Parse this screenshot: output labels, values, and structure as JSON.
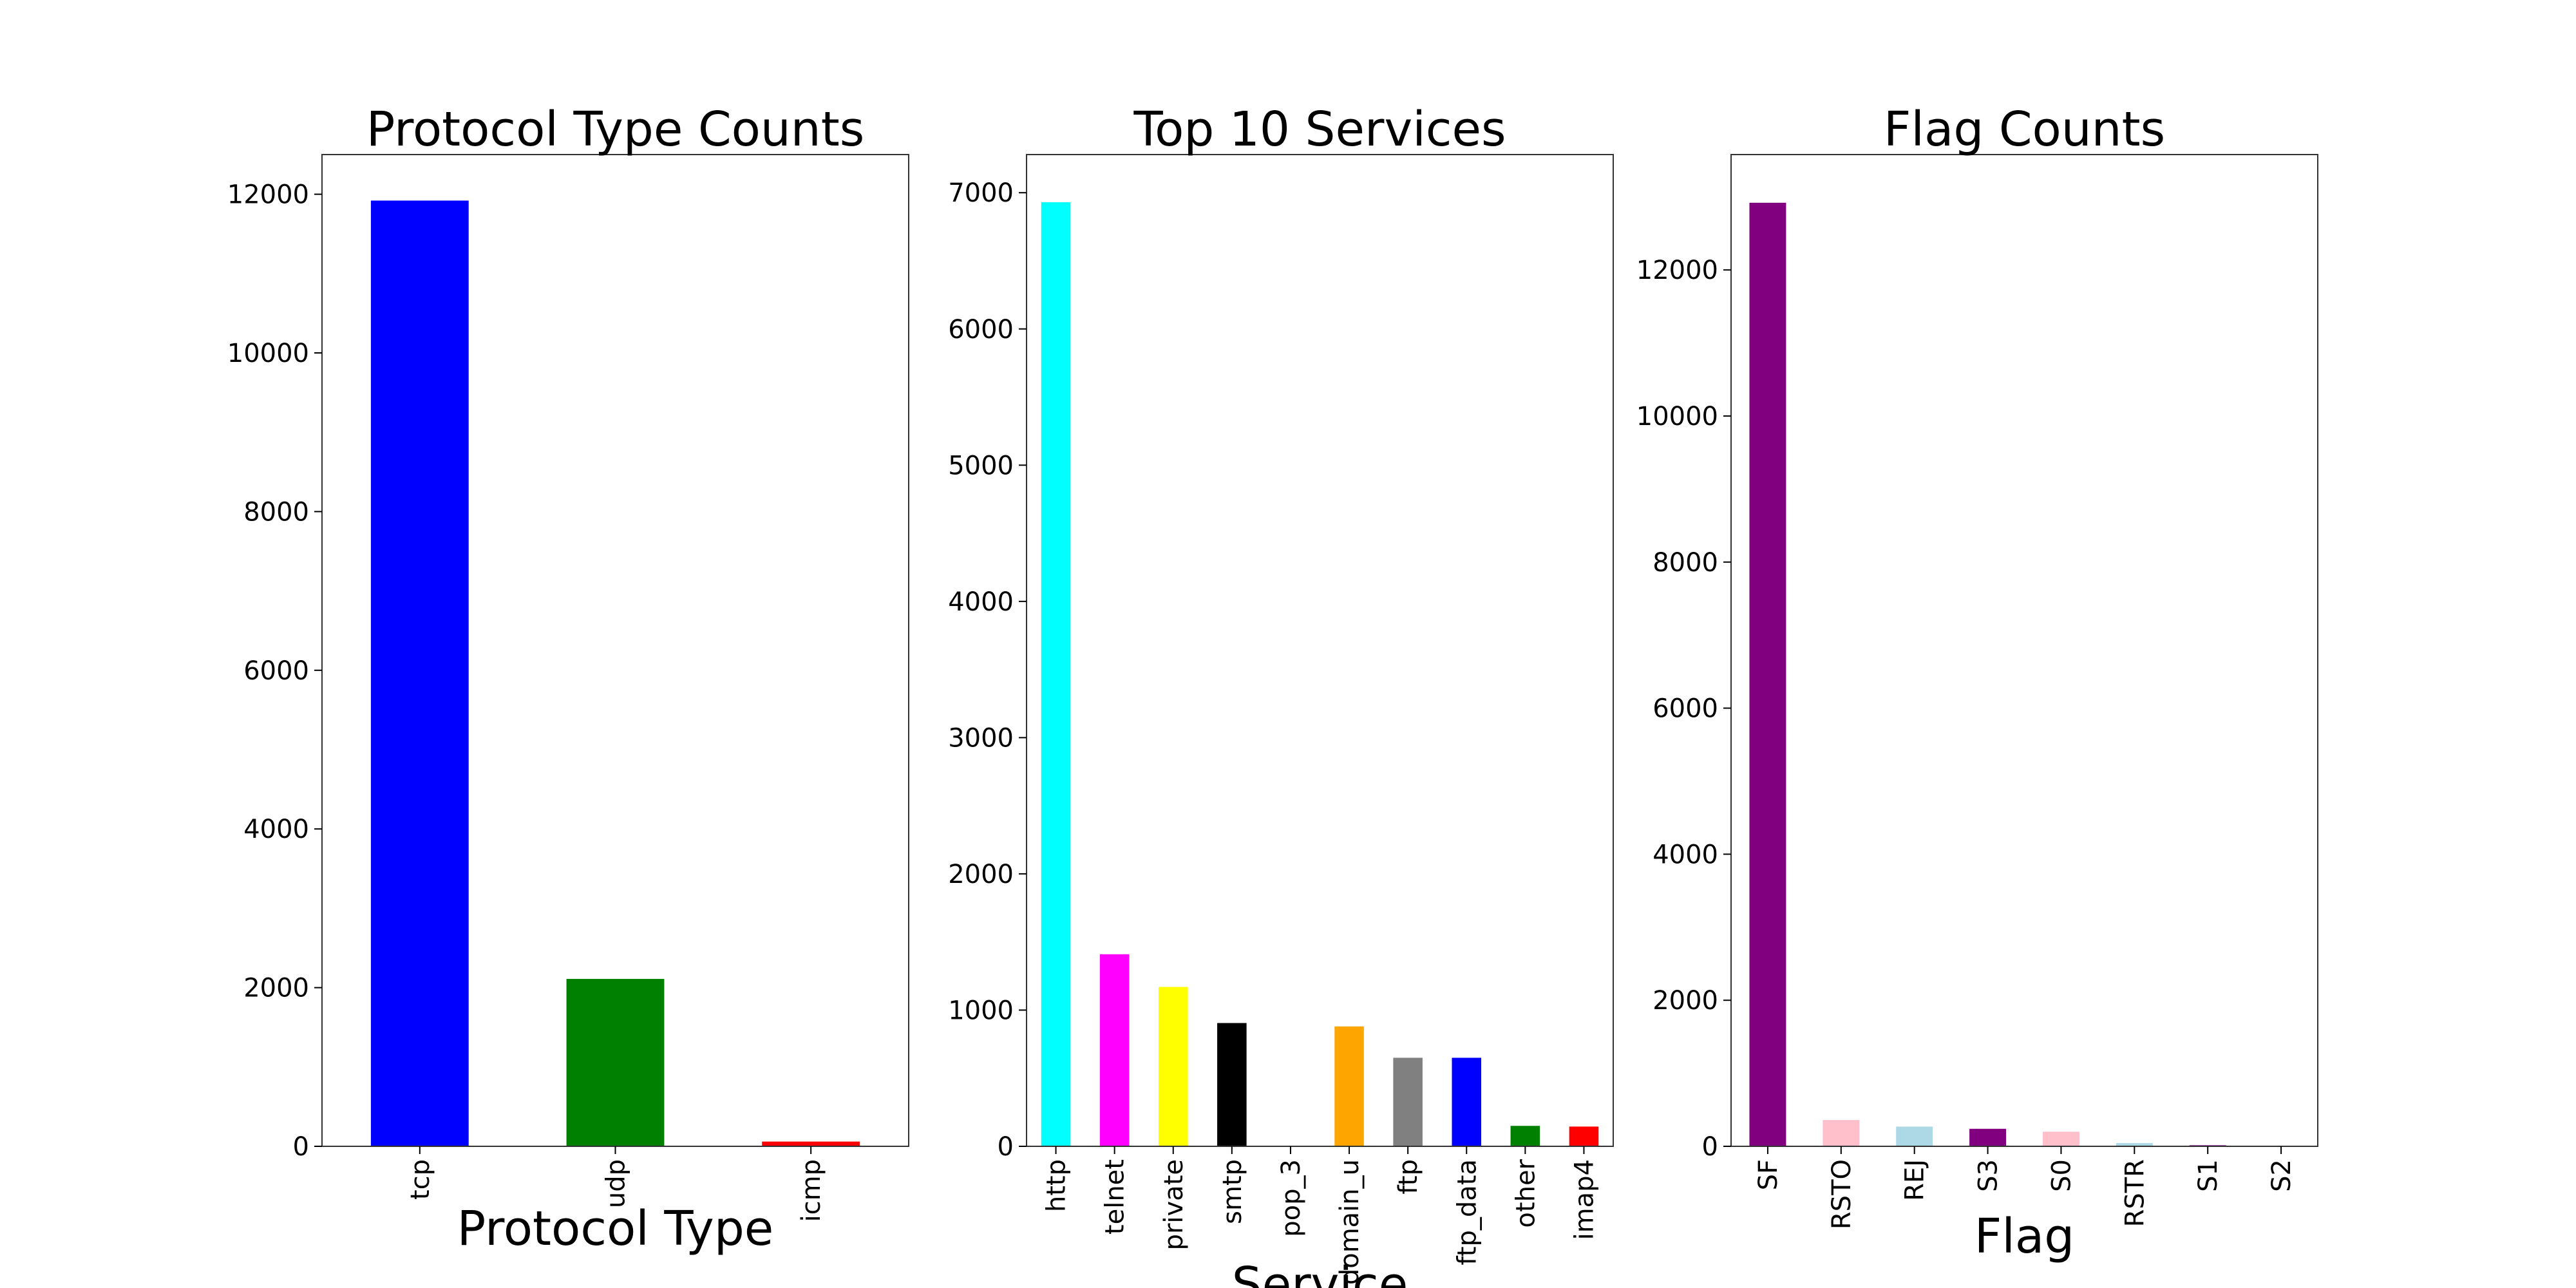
{
  "chart_data": [
    {
      "type": "bar",
      "title": "Protocol Type Counts",
      "xlabel": "Protocol Type",
      "ylabel": "",
      "ylim": [
        0,
        12500
      ],
      "yticks": [
        0,
        2000,
        4000,
        6000,
        8000,
        10000,
        12000
      ],
      "categories": [
        "tcp",
        "udp",
        "icmp"
      ],
      "values": [
        11920,
        2110,
        60
      ],
      "colors": [
        "#0000ff",
        "#008000",
        "#ff0000"
      ],
      "grid": false,
      "legend": "none"
    },
    {
      "type": "bar",
      "title": "Top 10 Services",
      "xlabel": "Service",
      "ylabel": "",
      "ylim": [
        0,
        7280
      ],
      "yticks": [
        0,
        1000,
        2000,
        3000,
        4000,
        5000,
        6000,
        7000
      ],
      "categories": [
        "http",
        "telnet",
        "private",
        "smtp",
        "pop_3",
        "domain_u",
        "ftp",
        "ftp_data",
        "other",
        "imap4"
      ],
      "values": [
        6930,
        1410,
        1170,
        905,
        0,
        880,
        650,
        650,
        150,
        145
      ],
      "colors": [
        "#00ffff",
        "#ff00ff",
        "#ffff00",
        "#000000",
        "#ff0000",
        "#ffa500",
        "#808080",
        "#0000ff",
        "#008000",
        "#ff0000"
      ],
      "grid": false,
      "legend": "none"
    },
    {
      "type": "bar",
      "title": "Flag Counts",
      "xlabel": "Flag",
      "ylabel": "",
      "ylim": [
        0,
        13580
      ],
      "yticks": [
        0,
        2000,
        4000,
        6000,
        8000,
        10000,
        12000
      ],
      "categories": [
        "SF",
        "RSTO",
        "REJ",
        "S3",
        "S0",
        "RSTR",
        "S1",
        "S2"
      ],
      "values": [
        12920,
        360,
        270,
        240,
        200,
        45,
        15,
        8
      ],
      "colors": [
        "#800080",
        "#ffc0cb",
        "#add8e6",
        "#800080",
        "#ffc0cb",
        "#add8e6",
        "#800080",
        "#ffc0cb"
      ],
      "grid": false,
      "legend": "none"
    }
  ]
}
